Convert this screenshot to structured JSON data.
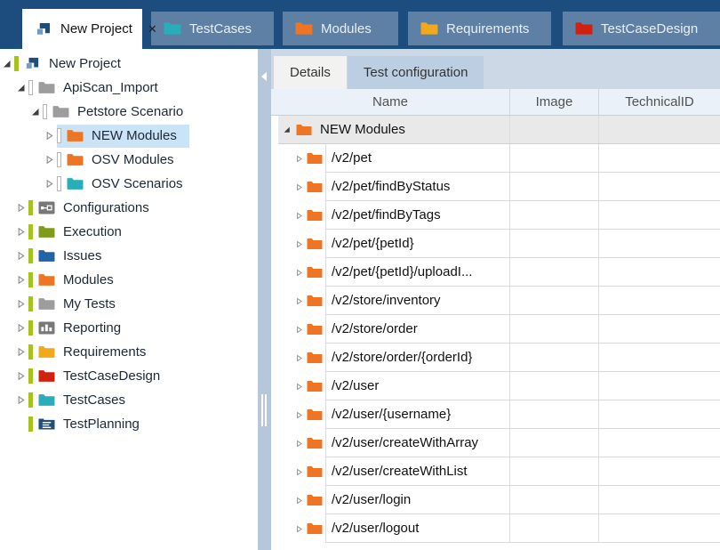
{
  "topbar": {
    "close_glyph": "✕",
    "tabs": [
      {
        "label": "New Project",
        "icon": "project",
        "active": true,
        "closable": true
      },
      {
        "label": "TestCases",
        "icon": "folder-teal",
        "active": false,
        "closable": false
      },
      {
        "label": "Modules",
        "icon": "folder-orange",
        "active": false,
        "closable": false
      },
      {
        "label": "Requirements",
        "icon": "folder-amber",
        "active": false,
        "closable": false
      },
      {
        "label": "TestCaseDesign",
        "icon": "folder-red",
        "active": false,
        "closable": false
      }
    ]
  },
  "tree": {
    "items": [
      {
        "label": "New Project",
        "depth": 0,
        "expander": "expanded",
        "bar": "green",
        "icon": "project",
        "selected": false
      },
      {
        "label": "ApiScan_Import",
        "depth": 1,
        "expander": "expanded",
        "bar": "outline",
        "icon": "folder-gray",
        "selected": false
      },
      {
        "label": "Petstore Scenario",
        "depth": 2,
        "expander": "expanded",
        "bar": "outline",
        "icon": "folder-gray",
        "selected": false
      },
      {
        "label": "NEW Modules",
        "depth": 3,
        "expander": "collapsed",
        "bar": "outline",
        "icon": "folder-orange",
        "selected": true
      },
      {
        "label": "OSV Modules",
        "depth": 3,
        "expander": "collapsed",
        "bar": "outline",
        "icon": "folder-orange",
        "selected": false
      },
      {
        "label": "OSV Scenarios",
        "depth": 3,
        "expander": "collapsed",
        "bar": "outline",
        "icon": "folder-teal",
        "selected": false
      },
      {
        "label": "Configurations",
        "depth": 1,
        "expander": "collapsed",
        "bar": "green",
        "icon": "configurations",
        "selected": false
      },
      {
        "label": "Execution",
        "depth": 1,
        "expander": "collapsed",
        "bar": "green",
        "icon": "folder-olive",
        "selected": false
      },
      {
        "label": "Issues",
        "depth": 1,
        "expander": "collapsed",
        "bar": "green",
        "icon": "folder-blue",
        "selected": false
      },
      {
        "label": "Modules",
        "depth": 1,
        "expander": "collapsed",
        "bar": "green",
        "icon": "folder-orange",
        "selected": false
      },
      {
        "label": "My Tests",
        "depth": 1,
        "expander": "collapsed",
        "bar": "green",
        "icon": "folder-gray",
        "selected": false
      },
      {
        "label": "Reporting",
        "depth": 1,
        "expander": "collapsed",
        "bar": "green",
        "icon": "reporting",
        "selected": false
      },
      {
        "label": "Requirements",
        "depth": 1,
        "expander": "collapsed",
        "bar": "green",
        "icon": "folder-amber",
        "selected": false
      },
      {
        "label": "TestCaseDesign",
        "depth": 1,
        "expander": "collapsed",
        "bar": "green",
        "icon": "folder-red",
        "selected": false
      },
      {
        "label": "TestCases",
        "depth": 1,
        "expander": "collapsed",
        "bar": "green",
        "icon": "folder-teal",
        "selected": false
      },
      {
        "label": "TestPlanning",
        "depth": 1,
        "expander": "none",
        "bar": "green",
        "icon": "testplanning",
        "selected": false
      }
    ]
  },
  "details": {
    "tabs": [
      {
        "label": "Details",
        "active": true
      },
      {
        "label": "Test configuration",
        "active": false
      }
    ],
    "table": {
      "columns": [
        "Name",
        "Image",
        "TechnicalID"
      ],
      "row_icon": "folder-orange",
      "root_row": {
        "name": "NEW Modules",
        "expander": "expanded",
        "image": "",
        "technical_id": ""
      },
      "rows": [
        {
          "name": "/v2/pet",
          "image": "",
          "technical_id": ""
        },
        {
          "name": "/v2/pet/findByStatus",
          "image": "",
          "technical_id": ""
        },
        {
          "name": "/v2/pet/findByTags",
          "image": "",
          "technical_id": ""
        },
        {
          "name": "/v2/pet/{petId}",
          "image": "",
          "technical_id": ""
        },
        {
          "name": "/v2/pet/{petId}/uploadI...",
          "image": "",
          "technical_id": ""
        },
        {
          "name": "/v2/store/inventory",
          "image": "",
          "technical_id": ""
        },
        {
          "name": "/v2/store/order",
          "image": "",
          "technical_id": ""
        },
        {
          "name": "/v2/store/order/{orderId}",
          "image": "",
          "technical_id": ""
        },
        {
          "name": "/v2/user",
          "image": "",
          "technical_id": ""
        },
        {
          "name": "/v2/user/{username}",
          "image": "",
          "technical_id": ""
        },
        {
          "name": "/v2/user/createWithArray",
          "image": "",
          "technical_id": ""
        },
        {
          "name": "/v2/user/createWithList",
          "image": "",
          "technical_id": ""
        },
        {
          "name": "/v2/user/login",
          "image": "",
          "technical_id": ""
        },
        {
          "name": "/v2/user/logout",
          "image": "",
          "technical_id": ""
        }
      ]
    }
  },
  "colors": {
    "topbar_bg": "#1d4c7f",
    "inactive_tab_bg": "#5d80a4",
    "active_tab_bg": "#ffffff",
    "selection_highlight": "#cbe3f7",
    "splitter": "#b7c7da",
    "detail_strip_bg": "#ccd8e6",
    "header_row_bg": "#eaf1f9",
    "root_row_bg": "#e9e9e9",
    "folder_orange": "#ee7524",
    "folder_teal": "#2aacba",
    "folder_gray": "#9d9d9d",
    "folder_amber": "#f2a81d",
    "folder_red": "#d2200f",
    "folder_olive": "#7f9b1b",
    "folder_blue": "#2063a7",
    "checkout_bar_green": "#a5c31c",
    "navy_icon": "#1f4e79"
  }
}
